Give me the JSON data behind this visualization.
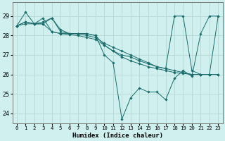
{
  "xlabel": "Humidex (Indice chaleur)",
  "bg_color": "#cff0ee",
  "grid_color": "#b8dbd8",
  "line_color": "#1a6b6b",
  "series": [
    [
      28.5,
      29.2,
      28.6,
      28.7,
      28.9,
      28.2,
      28.1,
      28.1,
      28.1,
      28.0,
      27.0,
      26.6,
      23.7,
      24.8,
      25.3,
      25.1,
      25.1,
      24.7,
      25.8,
      26.2,
      25.9,
      28.1,
      29.0,
      29.0
    ],
    [
      28.5,
      28.6,
      28.6,
      28.6,
      28.2,
      28.1,
      28.05,
      28.0,
      27.9,
      27.8,
      27.5,
      27.2,
      26.9,
      26.7,
      26.55,
      26.4,
      26.3,
      26.2,
      26.1,
      26.05,
      26.0,
      26.0,
      26.0,
      26.0
    ],
    [
      28.5,
      28.7,
      28.6,
      28.6,
      28.9,
      28.3,
      28.1,
      28.1,
      28.1,
      28.0,
      27.5,
      27.2,
      27.0,
      26.9,
      26.7,
      26.55,
      26.4,
      26.3,
      26.2,
      26.1,
      26.0,
      26.0,
      26.0,
      26.0
    ],
    [
      28.5,
      28.7,
      28.6,
      28.9,
      28.2,
      28.1,
      28.1,
      28.1,
      28.0,
      27.9,
      27.6,
      27.4,
      27.2,
      27.0,
      26.8,
      26.6,
      26.4,
      26.3,
      29.0,
      29.0,
      26.2,
      26.0,
      26.0,
      29.0
    ]
  ],
  "ylim": [
    23.5,
    29.7
  ],
  "yticks": [
    24,
    25,
    26,
    27,
    28,
    29
  ],
  "xticks": [
    0,
    1,
    2,
    3,
    4,
    5,
    6,
    7,
    8,
    9,
    10,
    11,
    12,
    13,
    14,
    15,
    16,
    17,
    18,
    19,
    20,
    21,
    22,
    23
  ]
}
